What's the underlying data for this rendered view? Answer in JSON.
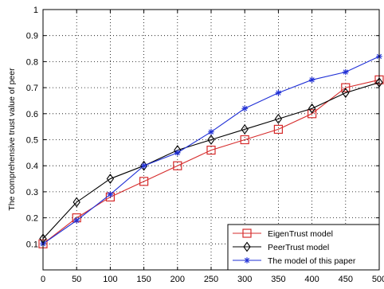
{
  "chart_data": {
    "type": "line",
    "title": "",
    "xlabel": "",
    "ylabel": "The comprehensive trust value of peer",
    "x": [
      0,
      50,
      100,
      150,
      200,
      250,
      300,
      350,
      400,
      450,
      500
    ],
    "xlim": [
      0,
      500
    ],
    "ylim": [
      0,
      1
    ],
    "xticks": [
      "0",
      "50",
      "100",
      "150",
      "200",
      "250",
      "300",
      "350",
      "400",
      "450",
      "500"
    ],
    "yticks": [
      "0.1",
      "0.2",
      "0.3",
      "0.4",
      "0.5",
      "0.6",
      "0.7",
      "0.8",
      "0.9",
      "1"
    ],
    "grid": true,
    "legend_position": "bottom-right",
    "series": [
      {
        "name": "EigenTrust model",
        "color": "#d62b2b",
        "marker": "square",
        "x": [
          0,
          50,
          100,
          150,
          200,
          250,
          300,
          350,
          400,
          450,
          500
        ],
        "values": [
          0.1,
          0.2,
          0.28,
          0.34,
          0.4,
          0.46,
          0.5,
          0.54,
          0.6,
          0.7,
          0.73
        ]
      },
      {
        "name": "PeerTrust model",
        "color": "#000000",
        "marker": "diamond",
        "x": [
          0,
          50,
          100,
          150,
          200,
          250,
          300,
          350,
          400,
          450,
          500
        ],
        "values": [
          0.12,
          0.26,
          0.35,
          0.4,
          0.46,
          0.5,
          0.54,
          0.58,
          0.62,
          0.68,
          0.72
        ]
      },
      {
        "name": "The model of this paper",
        "color": "#1f2fd6",
        "marker": "star",
        "x": [
          0,
          50,
          100,
          150,
          200,
          250,
          300,
          350,
          400,
          450,
          500
        ],
        "values": [
          0.1,
          0.19,
          0.29,
          0.4,
          0.45,
          0.53,
          0.62,
          0.68,
          0.73,
          0.76,
          0.82
        ]
      }
    ]
  }
}
